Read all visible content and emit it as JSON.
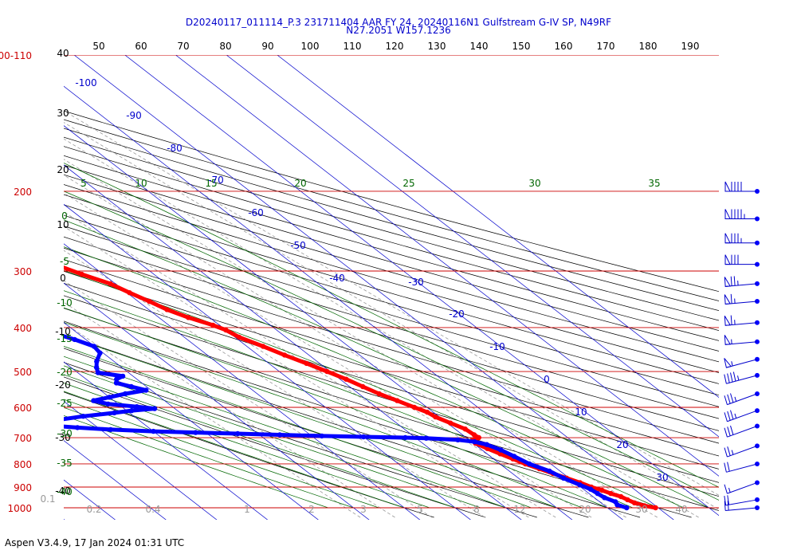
{
  "header": {
    "line1": "D20240117_011114_P.3 231711404 AAR FY 24, 20240116N1 Gulfstream G-IV SP, N49RF",
    "line2": "N27.2051 W157.1236"
  },
  "footer": {
    "text": "Aspen V3.4.9, 17 Jan 2024  01:31 UTC"
  },
  "colors": {
    "isobar": "#cc0000",
    "isotherm": "#0000cc",
    "dry_adiabat": "#000000",
    "moist_adiabat": "#006600",
    "mixing_ratio": "#999999",
    "temperature": "#ff0000",
    "dewpoint": "#0000ff"
  },
  "chart_data": {
    "type": "skew-t",
    "title": "D20240117_011114_P.3 231711404 AAR FY 24, 20240116N1 Gulfstream G-IV SP, N49RF",
    "subtitle": "N27.2051 W157.1236",
    "pressure_labels": [
      {
        "p": 1000,
        "label": "1000"
      },
      {
        "p": 900,
        "label": "900"
      },
      {
        "p": 800,
        "label": "800"
      },
      {
        "p": 700,
        "label": "700"
      },
      {
        "p": 600,
        "label": "600"
      },
      {
        "p": 500,
        "label": "500"
      },
      {
        "p": 400,
        "label": "400"
      },
      {
        "p": 300,
        "label": "300"
      },
      {
        "p": 200,
        "label": "200"
      },
      {
        "p": 100,
        "label": "100-110"
      }
    ],
    "top_axis_labels": [
      "50",
      "60",
      "70",
      "80",
      "90",
      "100",
      "110",
      "120",
      "130",
      "140",
      "150",
      "160",
      "170",
      "180",
      "190"
    ],
    "isotherm_labels": [
      {
        "t": -100,
        "label": "-100"
      },
      {
        "t": -90,
        "label": "-90"
      },
      {
        "t": -80,
        "label": "-80"
      },
      {
        "t": -70,
        "label": "-70"
      },
      {
        "t": -60,
        "label": "-60"
      },
      {
        "t": -50,
        "label": "-50"
      },
      {
        "t": -40,
        "label": "-40"
      },
      {
        "t": -30,
        "label": "-30"
      },
      {
        "t": -20,
        "label": "-20"
      },
      {
        "t": -10,
        "label": "-10"
      },
      {
        "t": 0,
        "label": "0"
      },
      {
        "t": 10,
        "label": "10"
      },
      {
        "t": 20,
        "label": "20"
      },
      {
        "t": 30,
        "label": "30"
      }
    ],
    "moist_adiabat_top_labels": [
      "5",
      "10",
      "15",
      "20",
      "25",
      "30",
      "35"
    ],
    "moist_adiabat_left_labels": [
      "0",
      "-5",
      "-10",
      "-15",
      "-20",
      "-25",
      "-30",
      "-35",
      "-40"
    ],
    "dry_adiabat_left_labels": [
      "40",
      "30",
      "20",
      "10",
      "0",
      "-10",
      "-20",
      "-30",
      "-40"
    ],
    "mixing_ratio_labels": [
      "0.1",
      "0.2",
      "0.4",
      "1",
      "2",
      "3",
      "5",
      "8",
      "12",
      "20",
      "30",
      "40"
    ],
    "temperature": [
      {
        "p": 1000,
        "t": 19.5
      },
      {
        "p": 990,
        "t": 17.8
      },
      {
        "p": 975,
        "t": 16.6
      },
      {
        "p": 960,
        "t": 16.0
      },
      {
        "p": 945,
        "t": 15.5
      },
      {
        "p": 930,
        "t": 14.3
      },
      {
        "p": 915,
        "t": 13.4
      },
      {
        "p": 900,
        "t": 12.1
      },
      {
        "p": 880,
        "t": 11.0
      },
      {
        "p": 860,
        "t": 9.5
      },
      {
        "p": 840,
        "t": 8.0
      },
      {
        "p": 820,
        "t": 6.5
      },
      {
        "p": 800,
        "t": 5.0
      },
      {
        "p": 780,
        "t": 3.8
      },
      {
        "p": 760,
        "t": 2.6
      },
      {
        "p": 740,
        "t": 1.4
      },
      {
        "p": 720,
        "t": 0.4
      },
      {
        "p": 710,
        "t": 0.5
      },
      {
        "p": 700,
        "t": 2.5
      },
      {
        "p": 690,
        "t": 2.3
      },
      {
        "p": 670,
        "t": 2.0
      },
      {
        "p": 650,
        "t": 0.6
      },
      {
        "p": 630,
        "t": -0.8
      },
      {
        "p": 615,
        "t": -1.2
      },
      {
        "p": 600,
        "t": -2.5
      },
      {
        "p": 580,
        "t": -4.2
      },
      {
        "p": 560,
        "t": -6.0
      },
      {
        "p": 540,
        "t": -7.4
      },
      {
        "p": 520,
        "t": -8.8
      },
      {
        "p": 500,
        "t": -10.6
      },
      {
        "p": 480,
        "t": -12.6
      },
      {
        "p": 460,
        "t": -14.8
      },
      {
        "p": 440,
        "t": -16.8
      },
      {
        "p": 420,
        "t": -19.2
      },
      {
        "p": 405,
        "t": -20.0
      },
      {
        "p": 395,
        "t": -21.3
      },
      {
        "p": 380,
        "t": -24.2
      },
      {
        "p": 365,
        "t": -26.4
      },
      {
        "p": 350,
        "t": -27.8
      },
      {
        "p": 335,
        "t": -29.5
      },
      {
        "p": 320,
        "t": -31.0
      },
      {
        "p": 305,
        "t": -34.2
      },
      {
        "p": 290,
        "t": -37.0
      },
      {
        "p": 275,
        "t": -40.2
      },
      {
        "p": 260,
        "t": -43.3
      },
      {
        "p": 245,
        "t": -46.6
      },
      {
        "p": 230,
        "t": -50.6
      },
      {
        "p": 215,
        "t": -54.0
      },
      {
        "p": 205,
        "t": -57.0
      },
      {
        "p": 198,
        "t": -58.2
      }
    ],
    "dewpoint": [
      {
        "p": 1000,
        "t": 13.8
      },
      {
        "p": 985,
        "t": 12.7
      },
      {
        "p": 970,
        "t": 13.1
      },
      {
        "p": 950,
        "t": 12.0
      },
      {
        "p": 930,
        "t": 11.7
      },
      {
        "p": 910,
        "t": 11.4
      },
      {
        "p": 890,
        "t": 10.4
      },
      {
        "p": 860,
        "t": 8.9
      },
      {
        "p": 830,
        "t": 7.9
      },
      {
        "p": 800,
        "t": 5.8
      },
      {
        "p": 770,
        "t": 4.7
      },
      {
        "p": 745,
        "t": 3.7
      },
      {
        "p": 725,
        "t": 2.3
      },
      {
        "p": 715,
        "t": 0.6
      },
      {
        "p": 708,
        "t": -2.2
      },
      {
        "p": 702,
        "t": -8.0
      },
      {
        "p": 700,
        "t": -12.0
      },
      {
        "p": 697,
        "t": -20.0
      },
      {
        "p": 694,
        "t": -28.0
      },
      {
        "p": 690,
        "t": -36.0
      },
      {
        "p": 686,
        "t": -44.0
      },
      {
        "p": 682,
        "t": -52.0
      },
      {
        "p": 678,
        "t": -60.0
      },
      {
        "p": 672,
        "t": -68.0
      },
      {
        "p": 665,
        "t": -74.0
      },
      {
        "p": 658,
        "t": -79.0
      },
      {
        "p": 650,
        "t": -77.0
      },
      {
        "p": 640,
        "t": -76.0
      },
      {
        "p": 628,
        "t": -70.0
      },
      {
        "p": 617,
        "t": -63.0
      },
      {
        "p": 610,
        "t": -59.0
      },
      {
        "p": 604,
        "t": -54.0
      },
      {
        "p": 598,
        "t": -57.0
      },
      {
        "p": 590,
        "t": -62.0
      },
      {
        "p": 580,
        "t": -64.0
      },
      {
        "p": 570,
        "t": -60.0
      },
      {
        "p": 560,
        "t": -56.0
      },
      {
        "p": 550,
        "t": -51.0
      },
      {
        "p": 540,
        "t": -53.0
      },
      {
        "p": 530,
        "t": -55.0
      },
      {
        "p": 520,
        "t": -54.0
      },
      {
        "p": 512,
        "t": -52.0
      },
      {
        "p": 503,
        "t": -56.0
      },
      {
        "p": 490,
        "t": -55.0
      },
      {
        "p": 475,
        "t": -53.4
      },
      {
        "p": 455,
        "t": -50.6
      },
      {
        "p": 440,
        "t": -50.1
      },
      {
        "p": 425,
        "t": -52.2
      },
      {
        "p": 410,
        "t": -55.0
      },
      {
        "p": 400,
        "t": -57.0
      },
      {
        "p": 390,
        "t": -57.0
      },
      {
        "p": 375,
        "t": -57.0
      },
      {
        "p": 360,
        "t": -58.4
      },
      {
        "p": 345,
        "t": -59.0
      },
      {
        "p": 330,
        "t": -60.2
      },
      {
        "p": 318,
        "t": -61.0
      },
      {
        "p": 305,
        "t": -60.0
      },
      {
        "p": 290,
        "t": -61.6
      },
      {
        "p": 275,
        "t": -62.0
      },
      {
        "p": 262,
        "t": -63.8
      },
      {
        "p": 250,
        "t": -65.6
      },
      {
        "p": 240,
        "t": -67.9
      },
      {
        "p": 230,
        "t": -70.3
      },
      {
        "p": 220,
        "t": -73.5
      },
      {
        "p": 213,
        "t": -76.1
      },
      {
        "p": 208,
        "t": -78.4
      }
    ],
    "wind_barbs": [
      {
        "p": 200,
        "speed": 90,
        "dir": 270
      },
      {
        "p": 230,
        "speed": 95,
        "dir": 270
      },
      {
        "p": 260,
        "speed": 85,
        "dir": 270
      },
      {
        "p": 290,
        "speed": 80,
        "dir": 270
      },
      {
        "p": 320,
        "speed": 75,
        "dir": 265
      },
      {
        "p": 350,
        "speed": 65,
        "dir": 265
      },
      {
        "p": 390,
        "speed": 65,
        "dir": 265
      },
      {
        "p": 430,
        "speed": 55,
        "dir": 265
      },
      {
        "p": 470,
        "speed": 55,
        "dir": 255
      },
      {
        "p": 510,
        "speed": 45,
        "dir": 255
      },
      {
        "p": 560,
        "speed": 35,
        "dir": 250
      },
      {
        "p": 610,
        "speed": 35,
        "dir": 250
      },
      {
        "p": 660,
        "speed": 30,
        "dir": 250
      },
      {
        "p": 730,
        "speed": 25,
        "dir": 250
      },
      {
        "p": 800,
        "speed": 20,
        "dir": 255
      },
      {
        "p": 880,
        "speed": 15,
        "dir": 250
      },
      {
        "p": 960,
        "speed": 20,
        "dir": 260
      },
      {
        "p": 1000,
        "speed": 20,
        "dir": 265
      }
    ]
  }
}
